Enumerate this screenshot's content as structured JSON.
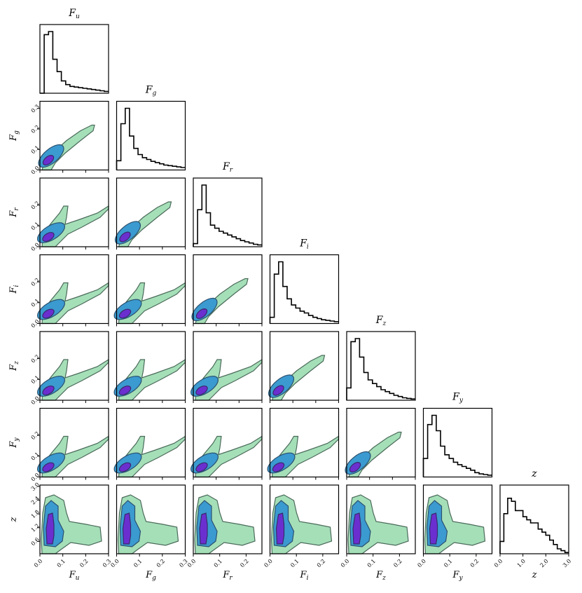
{
  "chart_data": {
    "type": "corner",
    "variables": [
      {
        "key": "u",
        "label": "F",
        "sub": "u",
        "title": "F_u",
        "ticks": [
          "0.0",
          "0.1",
          "0.2",
          "0.3"
        ],
        "range": [
          0,
          0.3
        ],
        "peak": 0.04
      },
      {
        "key": "g",
        "label": "F",
        "sub": "g",
        "title": "F_g",
        "ticks": [
          "0.0",
          "0.1",
          "0.2",
          "0.3"
        ],
        "range": [
          0,
          0.3
        ],
        "peak": 0.04
      },
      {
        "key": "r",
        "label": "F",
        "sub": "r",
        "title": "F_r",
        "ticks": [
          "0.0",
          "0.1",
          "0.2"
        ],
        "range": [
          0,
          0.26
        ],
        "peak": 0.045
      },
      {
        "key": "i",
        "label": "F",
        "sub": "i",
        "title": "F_i",
        "ticks": [
          "0.0",
          "0.1",
          "0.2"
        ],
        "range": [
          0,
          0.26
        ],
        "peak": 0.045
      },
      {
        "key": "z",
        "label": "F",
        "sub": "z",
        "title": "F_z",
        "ticks": [
          "0.0",
          "0.1",
          "0.2"
        ],
        "range": [
          0,
          0.26
        ],
        "peak": 0.045
      },
      {
        "key": "y",
        "label": "F",
        "sub": "y",
        "title": "F_y",
        "ticks": [
          "0.0",
          "0.1",
          "0.2"
        ],
        "range": [
          0,
          0.26
        ],
        "peak": 0.045
      },
      {
        "key": "zz",
        "label": "z",
        "sub": "",
        "title": "z",
        "ticks": [
          "0.0",
          "1.0",
          "2.0",
          "3.0"
        ],
        "range": [
          0,
          3.0
        ],
        "peak": 0.6
      }
    ],
    "y_ticks": {
      "g": [
        "0.0",
        "0.1",
        "0.2",
        "0.3"
      ],
      "r": [
        "0.0",
        "0.1",
        "0.2"
      ],
      "i": [
        "0.0",
        "0.1",
        "0.2"
      ],
      "z": [
        "0.0",
        "0.1",
        "0.2"
      ],
      "y": [
        "0.0",
        "0.1",
        "0.2"
      ],
      "zz": [
        "0.6",
        "1.2",
        "1.8",
        "2.4",
        "3.0"
      ]
    },
    "histograms": [
      [
        0.0,
        0.95,
        1.0,
        0.55,
        0.35,
        0.2,
        0.14,
        0.11,
        0.1,
        0.09,
        0.08,
        0.07,
        0.06,
        0.05,
        0.04,
        0.03
      ],
      [
        0.15,
        0.75,
        1.0,
        0.55,
        0.35,
        0.25,
        0.2,
        0.17,
        0.14,
        0.12,
        0.1,
        0.08,
        0.07,
        0.06,
        0.05,
        0.04
      ],
      [
        0.05,
        0.6,
        1.0,
        0.55,
        0.35,
        0.3,
        0.25,
        0.22,
        0.19,
        0.16,
        0.13,
        0.1,
        0.08,
        0.06,
        0.04,
        0.03
      ],
      [
        0.1,
        0.8,
        1.0,
        0.6,
        0.4,
        0.3,
        0.25,
        0.2,
        0.17,
        0.13,
        0.1,
        0.08,
        0.06,
        0.05,
        0.04,
        0.03
      ],
      [
        0.2,
        0.95,
        1.0,
        0.7,
        0.45,
        0.33,
        0.27,
        0.22,
        0.17,
        0.14,
        0.11,
        0.08,
        0.06,
        0.04,
        0.03,
        0.02
      ],
      [
        0.3,
        0.85,
        1.0,
        0.75,
        0.5,
        0.36,
        0.3,
        0.24,
        0.2,
        0.17,
        0.14,
        0.11,
        0.07,
        0.05,
        0.04,
        0.03
      ],
      [
        0.2,
        0.65,
        0.9,
        0.85,
        0.7,
        0.7,
        0.6,
        0.55,
        0.5,
        0.5,
        0.4,
        0.35,
        0.3,
        0.22,
        0.15,
        0.08,
        0.05,
        0.02
      ]
    ]
  }
}
